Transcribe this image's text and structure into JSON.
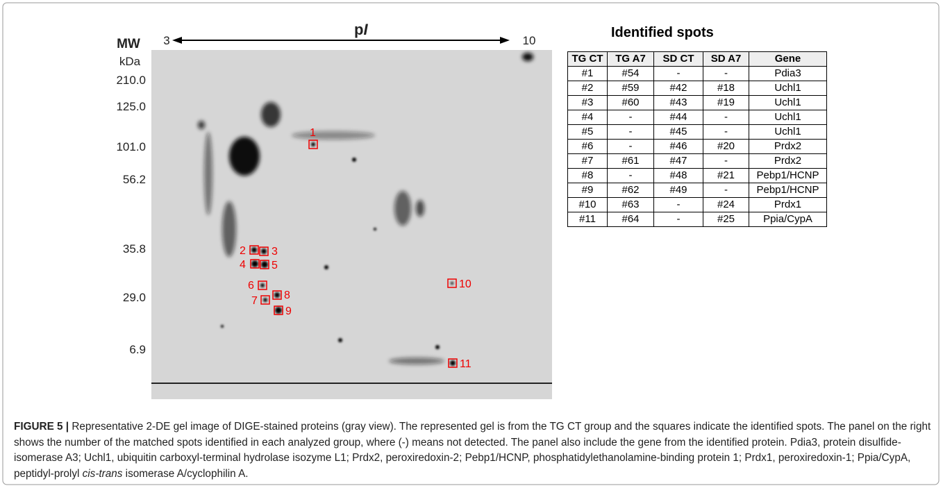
{
  "figure": {
    "axis": {
      "mw": "MW",
      "kda": "kDa",
      "pi_p": "p",
      "pi_i": "I",
      "pi_min": "3",
      "pi_max": "10",
      "mw_labels": [
        "210.0",
        "125.0",
        "101.0",
        "56.2",
        "35.8",
        "29.0",
        "6.9"
      ]
    },
    "spots": [
      "1",
      "2",
      "3",
      "4",
      "5",
      "6",
      "7",
      "8",
      "9",
      "10",
      "11"
    ],
    "table": {
      "title": "Identified spots",
      "header": [
        "TG CT",
        "TG A7",
        "SD CT",
        "SD A7",
        "Gene"
      ],
      "rows": [
        [
          "#1",
          "#54",
          "-",
          "-",
          "Pdia3"
        ],
        [
          "#2",
          "#59",
          "#42",
          "#18",
          "Uchl1"
        ],
        [
          "#3",
          "#60",
          "#43",
          "#19",
          "Uchl1"
        ],
        [
          "#4",
          "-",
          "#44",
          "-",
          "Uchl1"
        ],
        [
          "#5",
          "-",
          "#45",
          "-",
          "Uchl1"
        ],
        [
          "#6",
          "-",
          "#46",
          "#20",
          "Prdx2"
        ],
        [
          "#7",
          "#61",
          "#47",
          "-",
          "Prdx2"
        ],
        [
          "#8",
          "-",
          "#48",
          "#21",
          "Pebp1/HCNP"
        ],
        [
          "#9",
          "#62",
          "#49",
          "-",
          "Pebp1/HCNP"
        ],
        [
          "#10",
          "#63",
          "-",
          "#24",
          "Prdx1"
        ],
        [
          "#11",
          "#64",
          "-",
          "#25",
          "Ppia/CypA"
        ]
      ]
    },
    "caption": {
      "label": "FIGURE 5 |",
      "text": " Representative 2-DE gel image of DIGE-stained proteins (gray view). The represented gel is from the TG CT group and the squares indicate the identified spots. The panel on the right shows the number of the matched spots identified in each analyzed group, where (-) means not detected. The panel also include the gene from the identified protein. Pdia3, protein disulfide-isomerase A3; Uchl1, ubiquitin carboxyl-terminal hydrolase isozyme L1; Prdx2, peroxiredoxin-2; Pebp1/HCNP, phosphatidylethanolamine-binding protein 1; Prdx1, peroxiredoxin-1; Ppia/CypA, peptidyl-prolyl ",
      "italic": "cis-trans",
      "tail": " isomerase A/cyclophilin A."
    }
  }
}
